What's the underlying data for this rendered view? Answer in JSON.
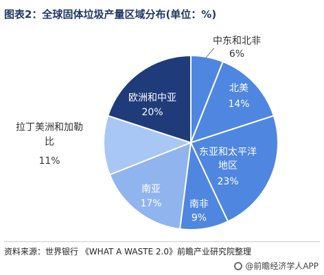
{
  "title": "图表2：全球固体垃圾产量区域分布(单位：%)",
  "source": "资料来源：世界银行 《WHAT A WASTE 2.0》前瞻产业研究院整理",
  "brand": "@前瞻经济学人APP",
  "watermark": "前瞻产业研究院",
  "chart_data": {
    "type": "pie",
    "start_angle_deg": 0,
    "direction": "clockwise",
    "slices": [
      {
        "label": "中东和北非",
        "value": 6,
        "value_label": "6%",
        "color": "#4f86e0",
        "label_position": "outside"
      },
      {
        "label": "北美",
        "value": 14,
        "value_label": "14%",
        "color": "#4f86e0",
        "label_position": "inside"
      },
      {
        "label": "东亚和太平洋地区",
        "label_lines": [
          "东亚和太平洋",
          "地区"
        ],
        "value": 23,
        "value_label": "23%",
        "color": "#4f86e0",
        "label_position": "inside"
      },
      {
        "label": "南非",
        "value": 9,
        "value_label": "9%",
        "color": "#4f86e0",
        "label_position": "inside"
      },
      {
        "label": "南亚",
        "value": 17,
        "value_label": "17%",
        "color": "#8fb4ee",
        "label_position": "inside"
      },
      {
        "label": "拉丁美洲和加勒比",
        "label_lines": [
          "拉丁美洲和加勒",
          "比"
        ],
        "value": 11,
        "value_label": "11%",
        "color": "#a9c7f4",
        "label_position": "outside"
      },
      {
        "label": "欧洲和中亚",
        "value": 20,
        "value_label": "20%",
        "color": "#1f3b7a",
        "label_position": "inside"
      }
    ]
  }
}
